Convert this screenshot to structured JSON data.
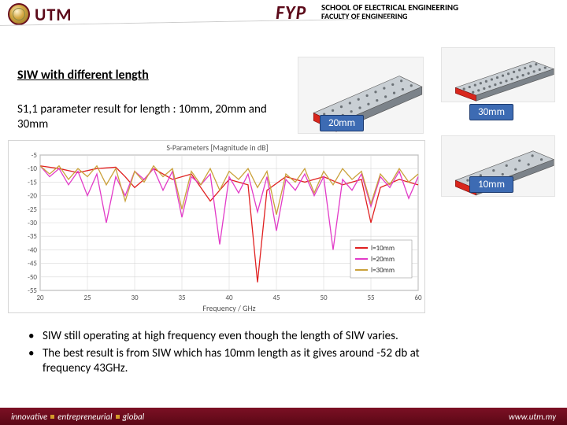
{
  "header": {
    "logo_text": "UTM",
    "fyp": "FYP",
    "school_line1": "SCHOOL OF ELECTRICAL ENGINEERING",
    "school_line2": "FACULTY OF ENGINEERING"
  },
  "section_title": "SIW with different length",
  "subdesc": "S1,1 parameter result for length : 10mm, 20mm and 30mm",
  "badges": {
    "b20": "20mm",
    "b30": "30mm",
    "b10": "10mm"
  },
  "thumb_style": {
    "slab_top": "#c9cfd4",
    "slab_side": "#7c838a",
    "slab_end": "#d8261c",
    "via_color": "#6b7176"
  },
  "chart": {
    "type": "line",
    "title": "S-Parameters [Magnitude in dB]",
    "xlabel": "Frequency / GHz",
    "xlim": [
      20,
      60
    ],
    "xtick_step": 5,
    "ylim": [
      -55,
      -5
    ],
    "ytick_step": 5,
    "background_color": "#ffffff",
    "grid_color": "#d9d9d9",
    "axis_color": "#666666",
    "label_fontsize": 10,
    "tick_fontsize": 9,
    "line_width": 1.3,
    "legend": {
      "position": "bottom-right",
      "items": [
        {
          "label": "l=10mm",
          "color": "#e02020"
        },
        {
          "label": "l=20mm",
          "color": "#e23bc8"
        },
        {
          "label": "l=30mm",
          "color": "#caa13a"
        }
      ]
    },
    "series": [
      {
        "name": "l=10mm",
        "color": "#e02020",
        "x": [
          20,
          22,
          24,
          26,
          28,
          29,
          30,
          31,
          32,
          34,
          36,
          38,
          40,
          42,
          43,
          44,
          46,
          48,
          50,
          52,
          54,
          55,
          56,
          58,
          60
        ],
        "y": [
          -9,
          -10,
          -11.5,
          -10,
          -9.5,
          -13,
          -17,
          -14,
          -10,
          -14,
          -12,
          -22,
          -14,
          -16,
          -52,
          -18,
          -13,
          -15,
          -13,
          -16,
          -14,
          -30,
          -17,
          -14,
          -16
        ]
      },
      {
        "name": "l=20mm",
        "color": "#e23bc8",
        "x": [
          20,
          21,
          22,
          23,
          24,
          25,
          26,
          27,
          28,
          29,
          30,
          31,
          32,
          33,
          34,
          35,
          36,
          37,
          38,
          39,
          40,
          41,
          42,
          43,
          44,
          45,
          46,
          47,
          48,
          49,
          50,
          51,
          52,
          53,
          54,
          55,
          56,
          57,
          58,
          59,
          60
        ],
        "y": [
          -9,
          -13,
          -10,
          -16,
          -11,
          -20,
          -12,
          -30,
          -13,
          -20,
          -11,
          -14,
          -10,
          -18,
          -11,
          -28,
          -13,
          -16,
          -12,
          -38,
          -13,
          -19,
          -12,
          -26,
          -13,
          -33,
          -14,
          -18,
          -12,
          -20,
          -13,
          -40,
          -14,
          -18,
          -12,
          -24,
          -13,
          -17,
          -11,
          -21,
          -13
        ]
      },
      {
        "name": "l=30mm",
        "color": "#caa13a",
        "x": [
          20,
          21,
          22,
          23,
          24,
          25,
          26,
          27,
          28,
          29,
          30,
          31,
          32,
          33,
          34,
          35,
          36,
          37,
          38,
          39,
          40,
          41,
          42,
          43,
          44,
          45,
          46,
          47,
          48,
          49,
          50,
          51,
          52,
          53,
          54,
          55,
          56,
          57,
          58,
          59,
          60
        ],
        "y": [
          -9,
          -12,
          -9,
          -14,
          -10,
          -13,
          -9,
          -16,
          -10,
          -22,
          -11,
          -15,
          -9,
          -13,
          -10,
          -25,
          -11,
          -16,
          -10,
          -18,
          -11,
          -14,
          -10,
          -17,
          -11,
          -27,
          -12,
          -15,
          -10,
          -19,
          -11,
          -16,
          -10,
          -14,
          -11,
          -23,
          -12,
          -16,
          -10,
          -15,
          -12
        ]
      }
    ]
  },
  "bullets": [
    "SIW still operating at high frequency even though the length of SIW varies.",
    "The best result is from SIW which has 10mm length as it gives around -52 db at frequency 43GHz."
  ],
  "footer": {
    "tag1": "innovative",
    "tag2": "entrepreneurial",
    "tag3": "global",
    "url": "www.utm.my"
  }
}
